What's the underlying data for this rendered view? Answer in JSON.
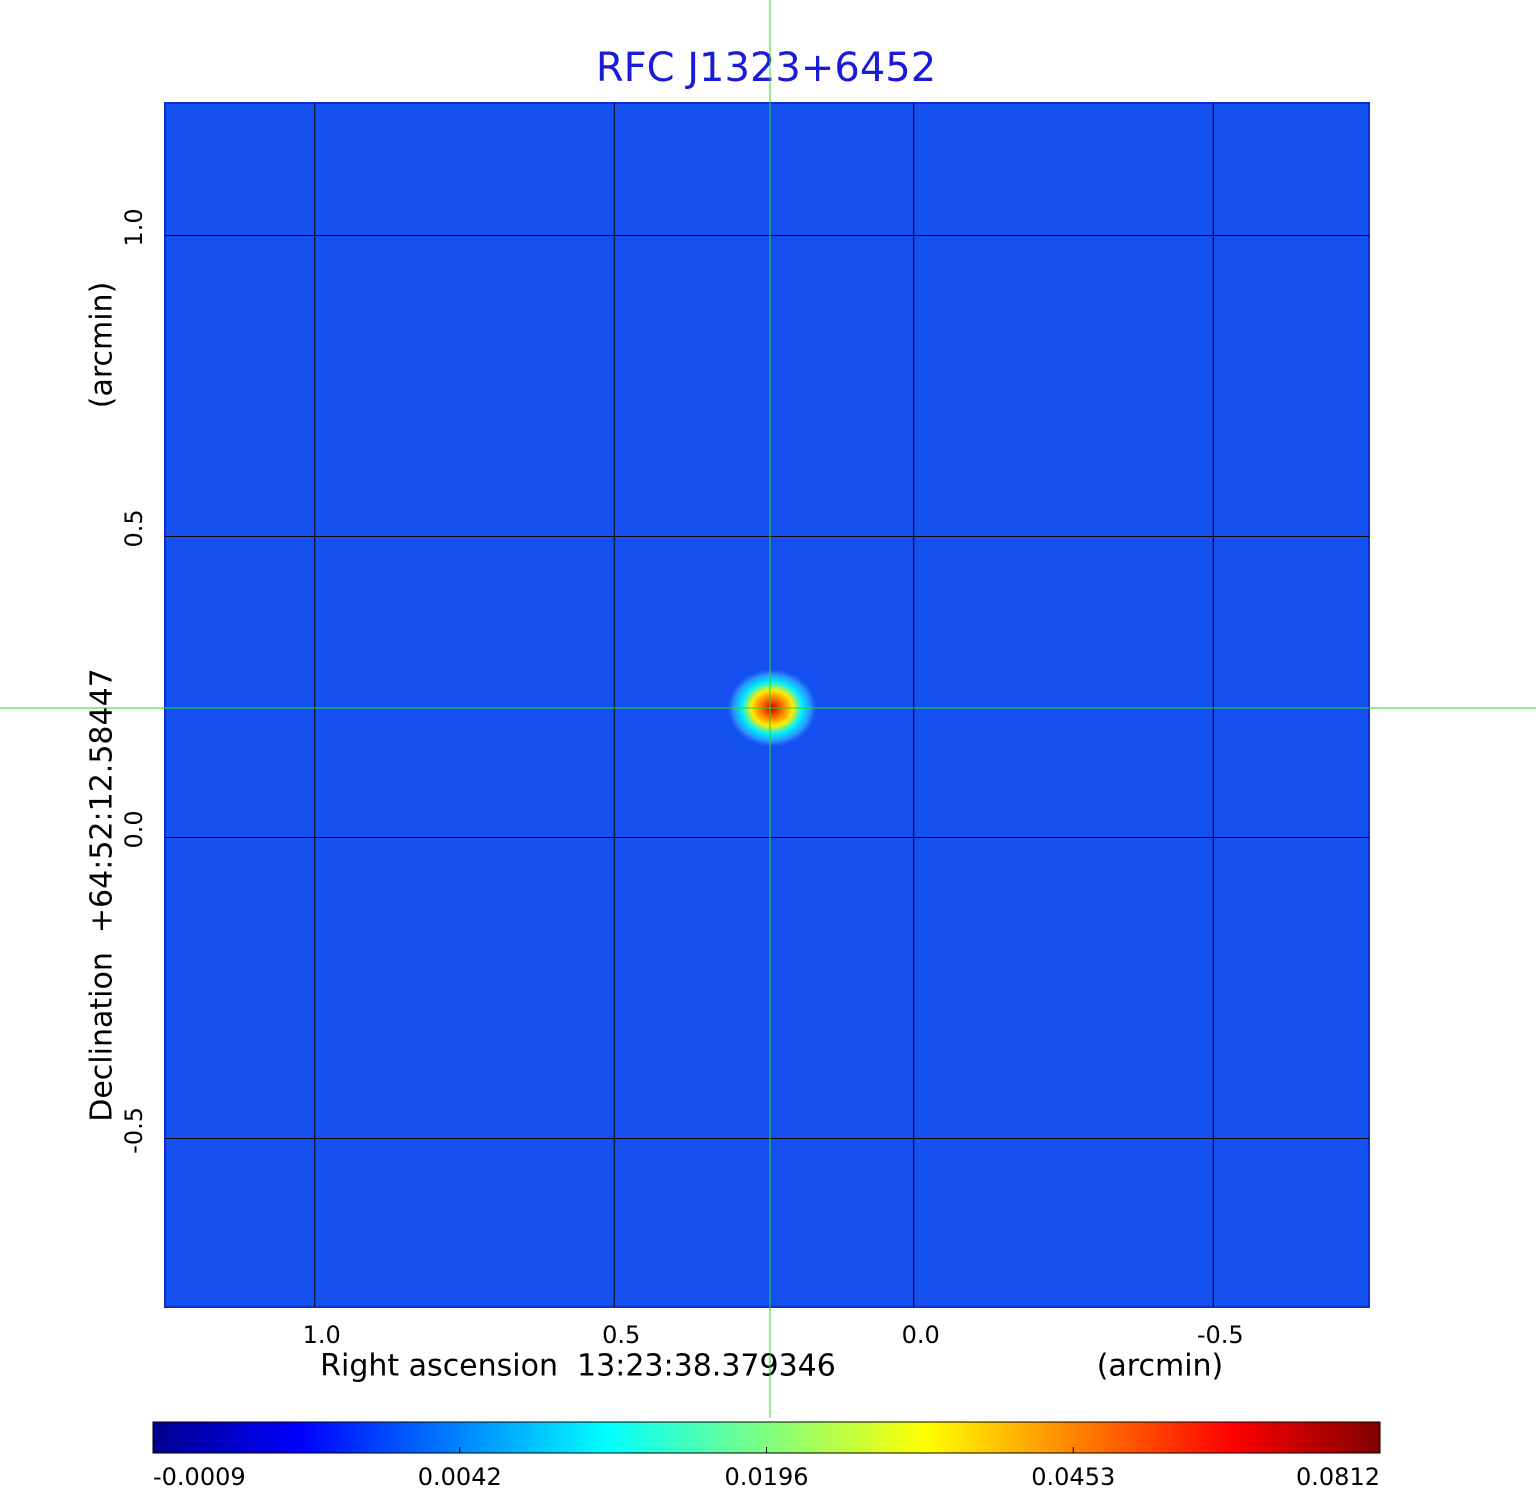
{
  "chart_data": {
    "type": "image",
    "title": "RFC J1323+6452",
    "x_label": "Right ascension  13:23:38.379346",
    "x_unit": "(arcmin)",
    "y_label": "Declination  +64:52:12.58447",
    "y_unit": "(arcmin)",
    "xlim": [
      1.25,
      -0.76
    ],
    "ylim": [
      -0.78,
      1.22
    ],
    "xticks": [
      {
        "value": 1,
        "label": "1.0"
      },
      0.5,
      {
        "value": 0,
        "label": "0.0"
      },
      -0.5
    ],
    "yticks": [
      {
        "value": 1,
        "label": "1.0"
      },
      0.5,
      {
        "value": 0,
        "label": "0.0"
      },
      -0.5
    ],
    "grid": true,
    "crosshair": {
      "x": 0.24,
      "y": 0.215
    },
    "colorbar_ticks": [
      -0.0009,
      0.0042,
      0.0196,
      0.0453,
      0.0812
    ]
  }
}
